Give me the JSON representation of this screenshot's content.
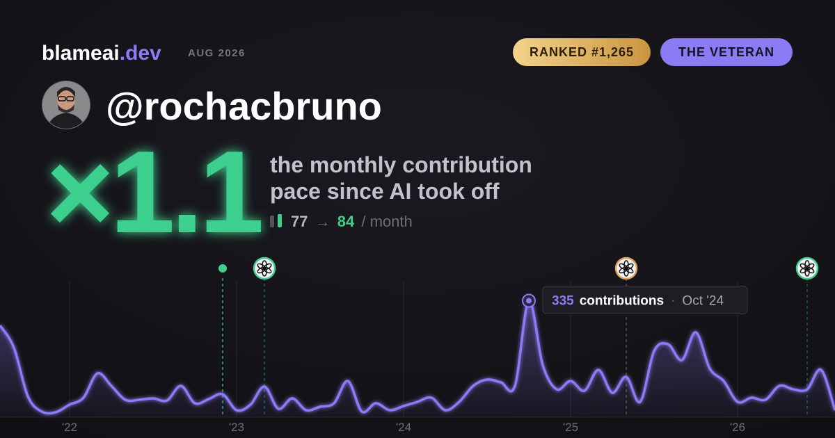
{
  "header": {
    "brand": "blameai",
    "brand_tld": ".dev",
    "date": "AUG 2026",
    "rank_badge": "RANKED #1,265",
    "title_badge": "THE VETERAN"
  },
  "user": {
    "handle": "@rochacbruno"
  },
  "headline": {
    "multiplier": "×1.1",
    "description_lines": [
      "the monthly contribution",
      "pace since AI took off"
    ],
    "before": 77,
    "arrow": "→",
    "after": 84,
    "unit": "/ month"
  },
  "chart_data": {
    "type": "area",
    "x": [
      "Aug '21",
      "Sep '21",
      "Oct '21",
      "Nov '21",
      "Dec '21",
      "Jan '22",
      "Feb '22",
      "Mar '22",
      "Apr '22",
      "May '22",
      "Jun '22",
      "Jul '22",
      "Aug '22",
      "Sep '22",
      "Oct '22",
      "Nov '22",
      "Dec '22",
      "Jan '23",
      "Feb '23",
      "Mar '23",
      "Apr '23",
      "May '23",
      "Jun '23",
      "Jul '23",
      "Aug '23",
      "Sep '23",
      "Oct '23",
      "Nov '23",
      "Dec '23",
      "Jan '24",
      "Feb '24",
      "Mar '24",
      "Apr '24",
      "May '24",
      "Jun '24",
      "Jul '24",
      "Aug '24",
      "Sep '24",
      "Oct '24",
      "Nov '24",
      "Dec '24",
      "Jan '25",
      "Feb '25",
      "Mar '25",
      "Apr '25",
      "May '25",
      "Jun '25",
      "Jul '25",
      "Aug '25",
      "Sep '25",
      "Oct '25",
      "Nov '25",
      "Dec '25",
      "Jan '26",
      "Feb '26",
      "Mar '26",
      "Apr '26",
      "May '26",
      "Jun '26",
      "Jul '26",
      "Aug '26"
    ],
    "series": [
      {
        "color": "#8b7cf6",
        "values": [
          264,
          200,
          60,
          16,
          14,
          36,
          56,
          126,
          90,
          50,
          50,
          54,
          48,
          90,
          40,
          52,
          66,
          20,
          36,
          88,
          24,
          54,
          20,
          30,
          40,
          104,
          16,
          40,
          20,
          32,
          44,
          56,
          20,
          44,
          90,
          108,
          100,
          90,
          335,
          150,
          80,
          104,
          76,
          136,
          70,
          116,
          44,
          190,
          210,
          164,
          244,
          140,
          104,
          44,
          56,
          50,
          90,
          80,
          80,
          136,
          20
        ]
      }
    ],
    "ylim": [
      0,
      340
    ],
    "xticks": [
      {
        "value": "Jan '22",
        "label": "'22"
      },
      {
        "value": "Jan '23",
        "label": "'23"
      },
      {
        "value": "Jan '24",
        "label": "'24"
      },
      {
        "value": "Jan '25",
        "label": "'25"
      },
      {
        "value": "Jan '26",
        "label": "'26"
      }
    ],
    "grid": true,
    "annotation": {
      "index": 38,
      "label": "contributions",
      "separator": "·"
    },
    "events": [
      {
        "x": "Dec '22",
        "color": "#3ecf8e"
      },
      {
        "x": "Mar '23",
        "color": "#3ecf8e"
      },
      {
        "x": "May '25",
        "color": "#e0a060"
      },
      {
        "x": "Jun '26",
        "color": "#3ecf8e"
      }
    ]
  }
}
